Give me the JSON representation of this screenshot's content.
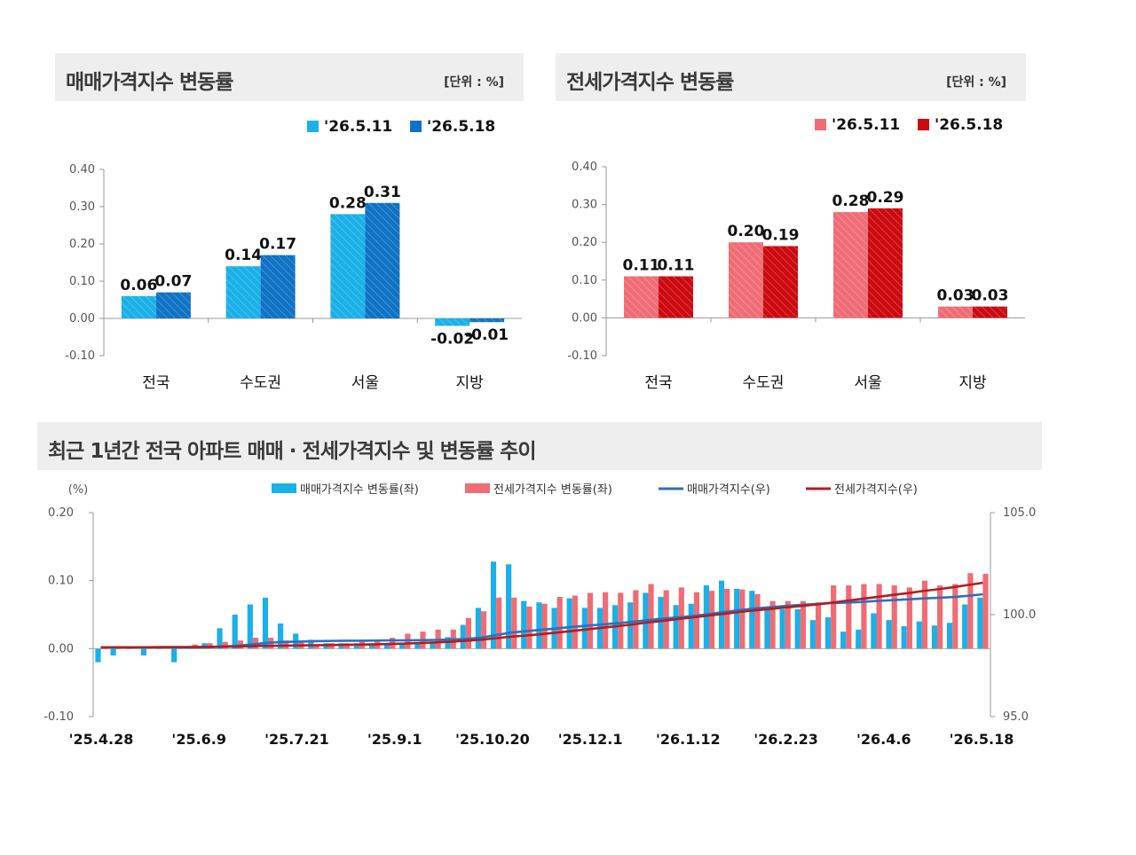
{
  "panel1": {
    "title": "매매가격지수 변동률",
    "unit": "[단위 : %]"
  },
  "panel2": {
    "title": "전세가격지수 변동률",
    "unit": "[단위 : %]"
  },
  "panel3": {
    "title": "최근 1년간 전국 아파트 매매 · 전세가격지수 및 변동률 추이"
  },
  "colors": {
    "sale_light": "#1ab0e8",
    "sale_dark": "#0f72c4",
    "jeonse_light": "#f06c74",
    "jeonse_dark": "#cc0a10",
    "sale_line": "#2e6fbf",
    "jeonse_line": "#b01e22"
  },
  "chart_data": [
    {
      "type": "bar",
      "categories": [
        "전국",
        "수도권",
        "서울",
        "지방"
      ],
      "series": [
        {
          "name": "'26.5.11",
          "values": [
            0.06,
            0.14,
            0.28,
            -0.02
          ]
        },
        {
          "name": "'26.5.18",
          "values": [
            0.07,
            0.17,
            0.31,
            -0.01
          ]
        }
      ],
      "data_labels": [
        [
          "0.06",
          "0.14",
          "0.28",
          "-0.02"
        ],
        [
          "0.07",
          "0.17",
          "0.31",
          "-0.01"
        ]
      ],
      "ylim": [
        -0.1,
        0.4
      ],
      "yticks": [
        "0.40",
        "0.30",
        "0.20",
        "0.10",
        "0.00",
        "-0.10"
      ],
      "legend": "top-right"
    },
    {
      "type": "bar",
      "categories": [
        "전국",
        "수도권",
        "서울",
        "지방"
      ],
      "series": [
        {
          "name": "'26.5.11",
          "values": [
            0.11,
            0.2,
            0.28,
            0.03
          ]
        },
        {
          "name": "'26.5.18",
          "values": [
            0.11,
            0.19,
            0.29,
            0.03
          ]
        }
      ],
      "data_labels": [
        [
          "0.11",
          "0.20",
          "0.28",
          "0.03"
        ],
        [
          "0.11",
          "0.19",
          "0.29",
          "0.03"
        ]
      ],
      "ylim": [
        -0.1,
        0.4
      ],
      "yticks": [
        "0.40",
        "0.30",
        "0.20",
        "0.10",
        "0.00",
        "-0.10"
      ],
      "legend": "top-right"
    },
    {
      "type": "bar+line",
      "y_unit_label": "(%)",
      "ylim_left": [
        -0.1,
        0.2
      ],
      "yticks_left": [
        "0.20",
        "0.10",
        "0.00",
        "-0.10"
      ],
      "ylim_right": [
        95.0,
        105.0
      ],
      "yticks_right": [
        "105.0",
        "100.0",
        "95.0"
      ],
      "x_tick_labels": [
        "'25.4.28",
        "'25.6.9",
        "'25.7.21",
        "'25.9.1",
        "'25.10.20",
        "'25.12.1",
        "'26.1.12",
        "'26.2.23",
        "'26.4.6",
        "'26.5.18"
      ],
      "series": [
        {
          "name": "매매가격지수 변동률(좌)",
          "kind": "bar",
          "axis": "left",
          "values": [
            -0.02,
            -0.01,
            0,
            -0.01,
            0,
            -0.02,
            0.004,
            0.008,
            0.03,
            0.05,
            0.065,
            0.075,
            0.037,
            0.022,
            0.013,
            0.008,
            0.008,
            0.008,
            0.008,
            0.006,
            0.006,
            0.008,
            0.01,
            0.017,
            0.035,
            0.06,
            0.128,
            0.124,
            0.07,
            0.068,
            0.06,
            0.074,
            0.06,
            0.06,
            0.064,
            0.068,
            0.082,
            0.076,
            0.064,
            0.066,
            0.093,
            0.1,
            0.088,
            0.085,
            0.058,
            0.058,
            0.058,
            0.042,
            0.046,
            0.025,
            0.028,
            0.052,
            0.042,
            0.033,
            0.04,
            0.034,
            0.038,
            0.065,
            0.075
          ]
        },
        {
          "name": "전세가격지수 변동률(좌)",
          "kind": "bar",
          "axis": "left",
          "values": [
            0,
            0,
            0.002,
            0.002,
            0.002,
            0.002,
            0.006,
            0.008,
            0.01,
            0.012,
            0.016,
            0.016,
            0.012,
            0.01,
            0.006,
            0.008,
            0.008,
            0.01,
            0.012,
            0.016,
            0.022,
            0.025,
            0.028,
            0.028,
            0.045,
            0.055,
            0.075,
            0.075,
            0.062,
            0.066,
            0.076,
            0.078,
            0.082,
            0.083,
            0.082,
            0.086,
            0.095,
            0.086,
            0.09,
            0.083,
            0.085,
            0.088,
            0.087,
            0.08,
            0.07,
            0.07,
            0.07,
            0.068,
            0.093,
            0.093,
            0.095,
            0.095,
            0.093,
            0.09,
            0.1,
            0.093,
            0.095,
            0.111,
            0.11
          ]
        },
        {
          "name": "매매가격지수(우)",
          "kind": "line",
          "axis": "right",
          "values": [
            98.4,
            98.4,
            98.4,
            98.4,
            98.4,
            98.39,
            98.39,
            98.4,
            98.43,
            98.48,
            98.55,
            98.62,
            98.66,
            98.68,
            98.7,
            98.71,
            98.72,
            98.72,
            98.73,
            98.74,
            98.74,
            98.75,
            98.76,
            98.78,
            98.81,
            98.87,
            99.0,
            99.12,
            99.19,
            99.26,
            99.32,
            99.4,
            99.46,
            99.52,
            99.58,
            99.65,
            99.73,
            99.81,
            99.87,
            99.94,
            100.03,
            100.13,
            100.22,
            100.3,
            100.36,
            100.42,
            100.48,
            100.52,
            100.57,
            100.59,
            100.62,
            100.67,
            100.71,
            100.75,
            100.79,
            100.82,
            100.86,
            100.92,
            101.0
          ]
        },
        {
          "name": "전세가격지수(우)",
          "kind": "line",
          "axis": "right",
          "values": [
            98.4,
            98.4,
            98.4,
            98.4,
            98.41,
            98.41,
            98.41,
            98.42,
            98.43,
            98.44,
            98.46,
            98.47,
            98.48,
            98.49,
            98.5,
            98.51,
            98.52,
            98.53,
            98.54,
            98.56,
            98.58,
            98.61,
            98.64,
            98.67,
            98.72,
            98.77,
            98.85,
            98.92,
            98.98,
            99.05,
            99.12,
            99.2,
            99.28,
            99.36,
            99.44,
            99.52,
            99.62,
            99.7,
            99.79,
            99.87,
            99.96,
            100.04,
            100.13,
            100.21,
            100.28,
            100.35,
            100.42,
            100.49,
            100.58,
            100.68,
            100.77,
            100.86,
            100.96,
            101.05,
            101.15,
            101.24,
            101.34,
            101.45,
            101.56
          ]
        }
      ]
    }
  ]
}
